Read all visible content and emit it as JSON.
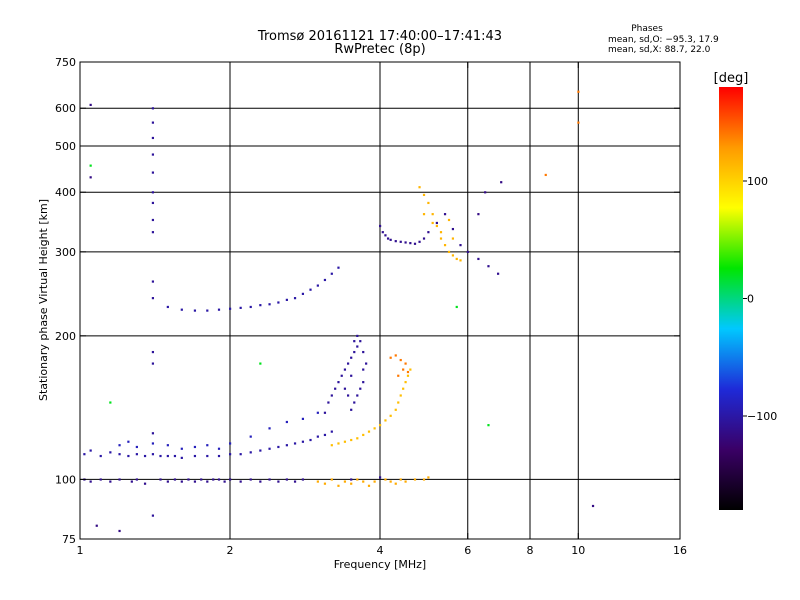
{
  "chart_data": {
    "type": "scatter",
    "title": "Tromsø 20161121 17:40:00–17:41:43",
    "subtitle": "RwPretec (8p)",
    "xlabel": "Frequency [MHz]",
    "ylabel": "Stationary phase Virtual Height [km]",
    "x_scale": "log",
    "y_scale": "log",
    "xlim": [
      1,
      16
    ],
    "ylim": [
      75,
      750
    ],
    "x_ticks": [
      1,
      2,
      4,
      6,
      8,
      10,
      16
    ],
    "y_ticks": [
      75,
      100,
      200,
      300,
      400,
      500,
      600,
      750
    ],
    "x_gridlines": [
      2,
      4,
      6,
      8,
      10
    ],
    "y_gridlines": [
      100,
      200,
      300,
      400,
      500,
      600
    ],
    "grid": true,
    "info": {
      "heading": "Phases",
      "line1": "mean, sd,O: −95.3, 17.9",
      "line2": "mean, sd,X:  88.7, 22.0"
    },
    "colorbar": {
      "label": "[deg]",
      "range": [
        -180,
        180
      ],
      "ticks": [
        100,
        0,
        -100
      ],
      "tick_labels": [
        "100",
        "0",
        "−100"
      ],
      "colors": [
        "#000000",
        "#3a0066",
        "#1e2ad8",
        "#00c8ff",
        "#00e600",
        "#ffff00",
        "#ff9a00",
        "#ff0000"
      ]
    },
    "series": [
      {
        "value": -110,
        "points": [
          [
            1.02,
            100
          ],
          [
            1.05,
            99
          ],
          [
            1.1,
            100
          ],
          [
            1.15,
            99
          ],
          [
            1.2,
            100
          ],
          [
            1.27,
            99
          ],
          [
            1.3,
            100
          ],
          [
            1.35,
            98
          ],
          [
            1.45,
            100
          ],
          [
            1.5,
            99
          ],
          [
            1.55,
            100
          ],
          [
            1.6,
            99
          ],
          [
            1.65,
            100
          ],
          [
            1.7,
            99
          ],
          [
            1.75,
            100
          ],
          [
            1.8,
            99
          ],
          [
            1.85,
            100
          ],
          [
            1.9,
            100
          ],
          [
            1.95,
            99
          ],
          [
            2.0,
            100
          ],
          [
            2.1,
            99
          ],
          [
            2.2,
            100
          ],
          [
            2.3,
            99
          ],
          [
            2.4,
            100
          ],
          [
            2.5,
            99
          ],
          [
            2.6,
            100
          ],
          [
            2.7,
            99
          ],
          [
            2.8,
            100
          ],
          [
            3.5,
            100
          ],
          [
            4.0,
            101
          ]
        ]
      },
      {
        "value": 120,
        "points": [
          [
            3.0,
            99
          ],
          [
            3.1,
            98
          ],
          [
            3.2,
            100
          ],
          [
            3.3,
            97
          ],
          [
            3.4,
            99
          ],
          [
            3.5,
            98
          ],
          [
            3.6,
            100
          ],
          [
            3.7,
            99
          ],
          [
            3.8,
            97
          ],
          [
            3.9,
            99
          ],
          [
            4.1,
            100
          ],
          [
            4.2,
            99
          ],
          [
            4.3,
            98
          ],
          [
            4.4,
            100
          ],
          [
            4.5,
            99
          ],
          [
            4.7,
            100
          ],
          [
            4.9,
            100
          ],
          [
            5.0,
            101
          ]
        ]
      },
      {
        "value": -100,
        "points": [
          [
            1.02,
            113
          ],
          [
            1.05,
            115
          ],
          [
            1.1,
            112
          ],
          [
            1.15,
            114
          ],
          [
            1.2,
            113
          ],
          [
            1.25,
            112
          ],
          [
            1.3,
            113
          ],
          [
            1.35,
            112
          ],
          [
            1.4,
            113
          ],
          [
            1.45,
            112
          ],
          [
            1.5,
            112
          ],
          [
            1.55,
            112
          ],
          [
            1.6,
            111
          ],
          [
            1.7,
            112
          ],
          [
            1.8,
            112
          ],
          [
            1.9,
            112
          ],
          [
            2.0,
            113
          ],
          [
            2.1,
            113
          ],
          [
            2.2,
            114
          ],
          [
            2.3,
            115
          ],
          [
            2.4,
            116
          ],
          [
            2.5,
            117
          ],
          [
            2.6,
            118
          ],
          [
            2.7,
            119
          ],
          [
            2.8,
            120
          ],
          [
            2.9,
            121
          ],
          [
            3.0,
            123
          ],
          [
            3.1,
            124
          ],
          [
            3.2,
            126
          ]
        ]
      },
      {
        "value": -90,
        "points": [
          [
            1.2,
            118
          ],
          [
            1.25,
            120
          ],
          [
            1.3,
            117
          ],
          [
            1.4,
            119
          ],
          [
            1.5,
            118
          ],
          [
            1.6,
            116
          ],
          [
            1.7,
            117
          ],
          [
            1.8,
            118
          ],
          [
            1.9,
            116
          ],
          [
            2.0,
            119
          ],
          [
            2.2,
            123
          ],
          [
            2.4,
            128
          ],
          [
            2.6,
            132
          ],
          [
            2.8,
            134
          ],
          [
            3.0,
            138
          ]
        ]
      },
      {
        "value": 110,
        "points": [
          [
            3.2,
            118
          ],
          [
            3.3,
            119
          ],
          [
            3.4,
            120
          ],
          [
            3.5,
            121
          ],
          [
            3.6,
            122
          ],
          [
            3.7,
            124
          ],
          [
            3.8,
            126
          ],
          [
            3.9,
            128
          ],
          [
            4.0,
            130
          ],
          [
            4.1,
            133
          ],
          [
            4.2,
            136
          ],
          [
            4.3,
            140
          ],
          [
            4.35,
            145
          ],
          [
            4.4,
            150
          ],
          [
            4.45,
            155
          ],
          [
            4.5,
            160
          ],
          [
            4.55,
            165
          ],
          [
            4.6,
            170
          ]
        ]
      },
      {
        "value": 140,
        "points": [
          [
            4.2,
            180
          ],
          [
            4.3,
            182
          ],
          [
            4.4,
            178
          ],
          [
            4.5,
            175
          ],
          [
            4.35,
            165
          ],
          [
            4.45,
            170
          ],
          [
            4.55,
            168
          ]
        ]
      },
      {
        "value": -105,
        "points": [
          [
            3.1,
            138
          ],
          [
            3.15,
            145
          ],
          [
            3.2,
            150
          ],
          [
            3.25,
            155
          ],
          [
            3.3,
            160
          ],
          [
            3.35,
            165
          ],
          [
            3.4,
            170
          ],
          [
            3.45,
            175
          ],
          [
            3.5,
            180
          ],
          [
            3.55,
            185
          ],
          [
            3.6,
            190
          ],
          [
            3.65,
            195
          ],
          [
            3.6,
            150
          ],
          [
            3.65,
            155
          ],
          [
            3.7,
            160
          ],
          [
            3.55,
            145
          ],
          [
            3.5,
            140
          ],
          [
            3.45,
            150
          ],
          [
            3.7,
            170
          ],
          [
            3.75,
            175
          ],
          [
            3.7,
            185
          ],
          [
            3.6,
            200
          ],
          [
            3.55,
            195
          ],
          [
            3.5,
            165
          ],
          [
            3.4,
            155
          ]
        ]
      },
      {
        "value": -100,
        "points": [
          [
            1.5,
            230
          ],
          [
            1.6,
            227
          ],
          [
            1.7,
            226
          ],
          [
            1.8,
            226
          ],
          [
            1.9,
            227
          ],
          [
            2.0,
            228
          ],
          [
            2.1,
            229
          ],
          [
            2.2,
            230
          ],
          [
            2.3,
            232
          ],
          [
            2.4,
            233
          ],
          [
            2.5,
            235
          ],
          [
            2.6,
            238
          ],
          [
            2.7,
            240
          ],
          [
            2.8,
            245
          ],
          [
            2.9,
            250
          ],
          [
            3.0,
            255
          ],
          [
            3.1,
            262
          ],
          [
            3.2,
            270
          ],
          [
            3.3,
            278
          ]
        ]
      },
      {
        "value": -105,
        "points": [
          [
            1.4,
            600
          ],
          [
            1.4,
            560
          ],
          [
            1.4,
            520
          ],
          [
            1.4,
            480
          ],
          [
            1.4,
            440
          ],
          [
            1.4,
            400
          ],
          [
            1.4,
            380
          ],
          [
            1.4,
            350
          ],
          [
            1.4,
            330
          ],
          [
            1.4,
            260
          ],
          [
            1.4,
            240
          ],
          [
            1.4,
            185
          ],
          [
            1.4,
            175
          ],
          [
            1.4,
            125
          ],
          [
            1.4,
            84
          ]
        ]
      },
      {
        "value": -110,
        "points": [
          [
            4.0,
            340
          ],
          [
            4.05,
            330
          ],
          [
            4.1,
            325
          ],
          [
            4.15,
            320
          ],
          [
            4.2,
            318
          ],
          [
            4.3,
            316
          ],
          [
            4.4,
            315
          ],
          [
            4.5,
            314
          ],
          [
            4.6,
            313
          ],
          [
            4.7,
            312
          ],
          [
            4.8,
            315
          ],
          [
            4.9,
            320
          ],
          [
            5.0,
            330
          ],
          [
            5.2,
            345
          ],
          [
            5.4,
            360
          ],
          [
            5.6,
            335
          ],
          [
            5.8,
            310
          ],
          [
            6.0,
            300
          ],
          [
            6.3,
            290
          ],
          [
            6.6,
            280
          ],
          [
            6.9,
            270
          ]
        ]
      },
      {
        "value": 115,
        "points": [
          [
            4.8,
            410
          ],
          [
            4.9,
            395
          ],
          [
            5.0,
            380
          ],
          [
            5.1,
            360
          ],
          [
            5.2,
            340
          ],
          [
            5.3,
            320
          ],
          [
            5.4,
            310
          ],
          [
            5.5,
            300
          ],
          [
            5.6,
            295
          ],
          [
            5.7,
            290
          ],
          [
            5.8,
            288
          ],
          [
            5.5,
            350
          ],
          [
            5.3,
            330
          ],
          [
            5.6,
            320
          ],
          [
            4.9,
            360
          ],
          [
            5.1,
            345
          ]
        ]
      },
      {
        "value": -115,
        "points": [
          [
            1.05,
            610
          ],
          [
            1.05,
            430
          ],
          [
            1.08,
            80
          ],
          [
            1.2,
            78
          ],
          [
            7.0,
            420
          ],
          [
            10.7,
            88
          ],
          [
            6.5,
            400
          ],
          [
            6.3,
            360
          ]
        ]
      },
      {
        "value": 140,
        "points": [
          [
            8.6,
            435
          ],
          [
            10.0,
            560
          ],
          [
            10.0,
            650
          ]
        ]
      },
      {
        "value": 20,
        "points": [
          [
            1.05,
            455
          ],
          [
            1.15,
            145
          ],
          [
            2.3,
            175
          ],
          [
            6.6,
            130
          ],
          [
            5.7,
            230
          ]
        ]
      }
    ]
  }
}
